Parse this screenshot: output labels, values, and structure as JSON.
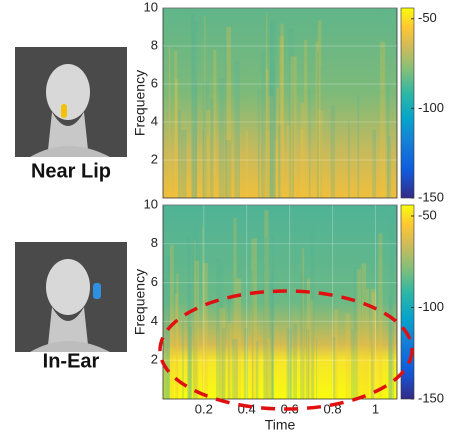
{
  "chart_data": [
    {
      "type": "heatmap",
      "label": "Near Lip",
      "ylabel": "Frequency",
      "ylim": [
        0,
        10
      ],
      "yticks": [
        2,
        4,
        6,
        8,
        10
      ],
      "colorbar": {
        "clim": [
          -150,
          -44
        ],
        "ticks": [
          -50,
          -100,
          -150
        ]
      }
    },
    {
      "type": "heatmap",
      "label": "In-Ear",
      "ylabel": "Frequency",
      "xlabel": "Time",
      "xlim": [
        0.01,
        1.1
      ],
      "xticks": [
        0.2,
        0.4,
        0.6,
        0.8,
        1
      ],
      "ylim": [
        0,
        10
      ],
      "yticks": [
        2,
        4,
        6,
        8,
        10
      ],
      "colorbar": {
        "clim": [
          -150,
          -44
        ],
        "ticks": [
          -50,
          -100,
          -150
        ]
      }
    }
  ]
}
